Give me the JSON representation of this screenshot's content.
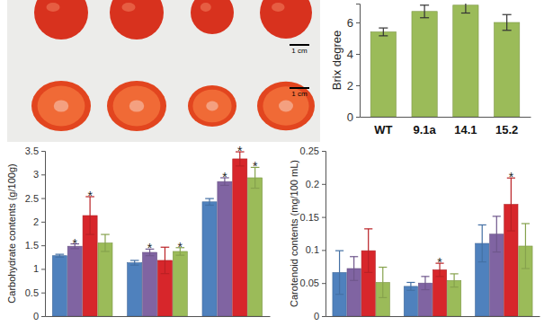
{
  "chart_data": [
    {
      "type": "bar",
      "y_label": "Brix degree",
      "categories": [
        "WT",
        "9.1a",
        "14.1",
        "15.2"
      ],
      "values": [
        5.4,
        6.7,
        7.1,
        6.0
      ],
      "errors": [
        0.25,
        0.4,
        0.5,
        0.5
      ],
      "color": "#9bbb59",
      "ylim": [
        0,
        7.2
      ],
      "yticks": [
        0,
        2,
        4,
        6
      ]
    },
    {
      "type": "bar",
      "y_label": "Carbohydrate contents (g/100g)",
      "categories": [
        null,
        null,
        null
      ],
      "tick_labels": "y",
      "ylim": [
        0,
        3.5
      ],
      "yticks": [
        0,
        0.5,
        1,
        1.5,
        2,
        2.5,
        3,
        3.5
      ],
      "series": [
        {
          "color": "#4f81bd",
          "values": [
            1.28,
            1.13,
            2.42
          ],
          "errors": [
            0.03,
            0.05,
            0.07
          ],
          "significance": [
            null,
            null,
            null
          ]
        },
        {
          "color": "#8064a2",
          "values": [
            1.48,
            1.35,
            2.85
          ],
          "errors": [
            0.05,
            0.07,
            0.08
          ],
          "significance": [
            "*",
            "*",
            "*"
          ]
        },
        {
          "color": "#d7262b",
          "values": [
            2.13,
            1.18,
            3.33
          ],
          "errors": [
            0.4,
            0.28,
            0.15
          ],
          "significance": [
            "*",
            null,
            "*"
          ]
        },
        {
          "color": "#9bbb59",
          "values": [
            1.55,
            1.37,
            2.93
          ],
          "errors": [
            0.18,
            0.08,
            0.22
          ],
          "significance": [
            null,
            "*",
            "*"
          ]
        }
      ]
    },
    {
      "type": "bar",
      "y_label": "Carotenoid contents (mg/100 mL)",
      "categories": [
        null,
        null,
        null
      ],
      "tick_labels": "y",
      "ylim": [
        0,
        0.25
      ],
      "yticks": [
        0,
        0.05,
        0.1,
        0.15,
        0.2,
        0.25
      ],
      "series": [
        {
          "color": "#4f81bd",
          "values": [
            0.066,
            0.045,
            0.11
          ],
          "errors": [
            0.033,
            0.006,
            0.028
          ],
          "significance": [
            null,
            null,
            null
          ]
        },
        {
          "color": "#8064a2",
          "values": [
            0.072,
            0.05,
            0.124
          ],
          "errors": [
            0.018,
            0.01,
            0.027
          ],
          "significance": [
            null,
            null,
            null
          ]
        },
        {
          "color": "#d7262b",
          "values": [
            0.099,
            0.07,
            0.169
          ],
          "errors": [
            0.033,
            0.01,
            0.04
          ],
          "significance": [
            null,
            "*",
            "*"
          ]
        },
        {
          "color": "#9bbb59",
          "values": [
            0.051,
            0.054,
            0.106
          ],
          "errors": [
            0.023,
            0.01,
            0.034
          ],
          "significance": [
            null,
            null,
            null
          ]
        }
      ]
    }
  ],
  "photo": {
    "scale_bar_labels": [
      "1 cm",
      "1 cm"
    ]
  }
}
